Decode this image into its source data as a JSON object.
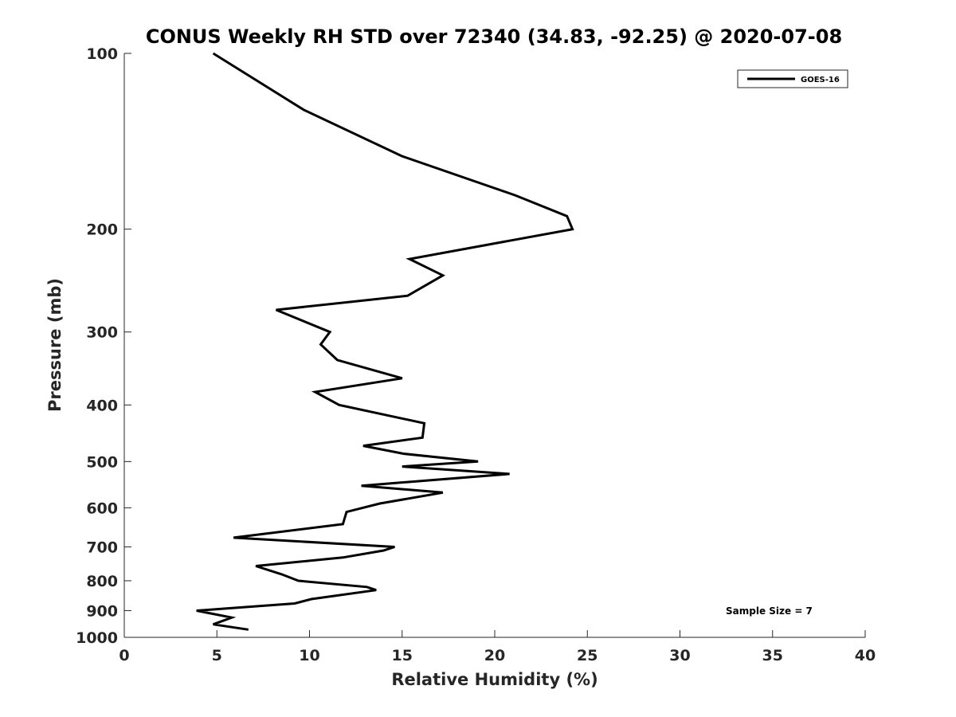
{
  "chart_data": {
    "type": "line",
    "title": "CONUS Weekly RH STD over 72340 (34.83, -92.25) @ 2020-07-08",
    "xlabel": "Relative Humidity (%)",
    "ylabel": "Pressure (mb)",
    "xlim": [
      0,
      40
    ],
    "ylim": [
      100,
      1000
    ],
    "y_scale": "log",
    "y_reversed": true,
    "x_ticks": [
      "0",
      "5",
      "10",
      "15",
      "20",
      "25",
      "30",
      "35",
      "40"
    ],
    "y_ticks": [
      "100",
      "200",
      "300",
      "400",
      "500",
      "600",
      "700",
      "800",
      "900",
      "1000"
    ],
    "grid": false,
    "legend_position": "top-right",
    "annotation": "Sample Size = 7",
    "series": [
      {
        "name": "GOES-16",
        "color": "#000000",
        "points": [
          [
            4.8,
            100
          ],
          [
            9.7,
            125
          ],
          [
            15.0,
            150
          ],
          [
            21.1,
            175
          ],
          [
            23.9,
            190
          ],
          [
            24.2,
            200
          ],
          [
            15.4,
            225
          ],
          [
            17.2,
            240
          ],
          [
            15.3,
            260
          ],
          [
            8.2,
            275
          ],
          [
            11.1,
            300
          ],
          [
            10.6,
            315
          ],
          [
            11.5,
            335
          ],
          [
            15.0,
            360
          ],
          [
            10.3,
            380
          ],
          [
            11.6,
            400
          ],
          [
            16.2,
            430
          ],
          [
            16.1,
            455
          ],
          [
            12.9,
            470
          ],
          [
            15.1,
            485
          ],
          [
            19.1,
            500
          ],
          [
            15.0,
            510
          ],
          [
            20.8,
            525
          ],
          [
            12.8,
            550
          ],
          [
            17.2,
            565
          ],
          [
            13.8,
            590
          ],
          [
            12.0,
            610
          ],
          [
            11.8,
            640
          ],
          [
            5.9,
            675
          ],
          [
            14.6,
            700
          ],
          [
            14.0,
            710
          ],
          [
            11.8,
            730
          ],
          [
            7.1,
            755
          ],
          [
            8.5,
            780
          ],
          [
            9.4,
            800
          ],
          [
            13.1,
            820
          ],
          [
            13.6,
            830
          ],
          [
            10.1,
            860
          ],
          [
            9.2,
            875
          ],
          [
            3.9,
            900
          ],
          [
            5.8,
            925
          ],
          [
            4.8,
            950
          ],
          [
            6.7,
            970
          ]
        ]
      }
    ]
  }
}
